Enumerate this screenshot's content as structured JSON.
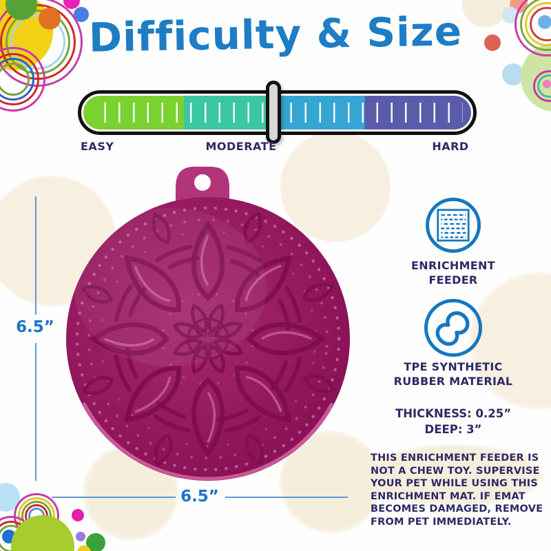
{
  "title": "Difficulty & Size",
  "difficulty_scale": {
    "labels": {
      "easy": "EASY",
      "moderate": "MODERATE",
      "hard": "HARD"
    },
    "selected_level": "MODERATE",
    "marker_position_pct": 49.1,
    "segments": [
      {
        "name": "easy",
        "color": "#7bd12f",
        "end_pct": 25.9
      },
      {
        "name": "easy-moderate",
        "color": "#3bc6a4",
        "end_pct": 49.2
      },
      {
        "name": "moderate-hard",
        "color": "#35a6d2",
        "end_pct": 72.6
      },
      {
        "name": "hard",
        "color": "#5a5cab",
        "end_pct": 100
      }
    ]
  },
  "product": {
    "brand_line1": "soda",
    "brand_line2": "pup",
    "height_label": "6.5”",
    "width_label": "6.5”",
    "body_color": "#971b60"
  },
  "features": [
    {
      "icon": "mat-texture-icon",
      "line1": "ENRICHMENT",
      "line2": "FEEDER"
    },
    {
      "icon": "peanut-icon",
      "line1": "TPE SYNTHETIC",
      "line2": "RUBBER MATERIAL"
    }
  ],
  "specs": {
    "thickness": "THICKNESS: 0.25”",
    "depth": "DEEP: 3”"
  },
  "warning": "THIS ENRICHMENT FEEDER IS NOT A CHEW TOY. SUPERVISE YOUR PET WHILE USING THIS ENRICHMENT MAT. IF EMAT BECOMES DAMAGED, REMOVE FROM PET IMMEDIATELY.",
  "colors": {
    "title_blue": "#1e7dc4",
    "navy_text": "#2d2a64",
    "dimension_blue": "#1c74c4",
    "icon_blue": "#1577c1",
    "accent_cream": "#f7efe0"
  }
}
